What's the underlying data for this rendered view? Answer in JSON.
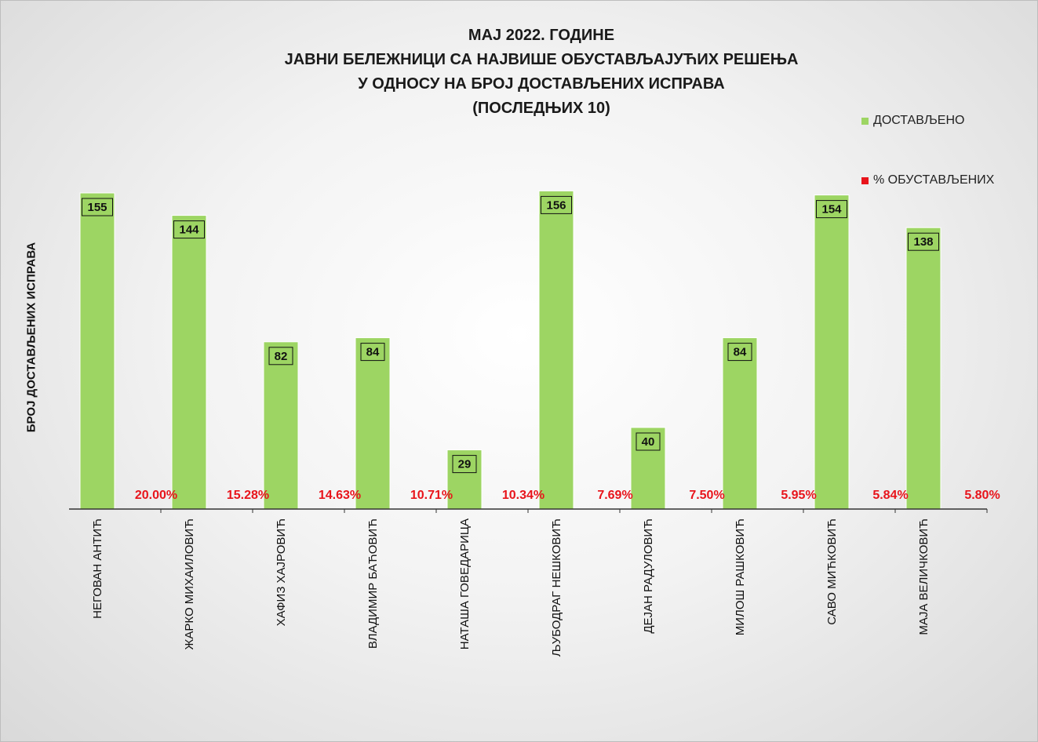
{
  "title_lines": [
    "МАЈ 2022. ГОДИНЕ",
    "ЈАВНИ БЕЛЕЖНИЦИ СА НАЈВИШЕ ОБУСТАВЉАЈУЋИХ РЕШЕЊА",
    "У ОДНОСУ НА БРОЈ ДОСТАВЉЕНИХ ИСПРАВА",
    "(ПОСЛЕДЊИХ 10)"
  ],
  "legend": [
    {
      "label": "ДОСТАВЉЕНО",
      "color": "#9dd563"
    },
    {
      "label": "% ОБУСТАВЉЕНИХ",
      "color": "#e8141b"
    }
  ],
  "chart_data": {
    "type": "bar",
    "title": "МАЈ 2022. ГОДИНЕ ЈАВНИ БЕЛЕЖНИЦИ СА НАЈВИШЕ ОБУСТАВЉАЈУЋИХ РЕШЕЊА У ОДНОСУ НА БРОЈ ДОСТАВЉЕНИХ ИСПРАВА (ПОСЛЕДЊИХ 10)",
    "xlabel": "",
    "ylabel": "БРОЈ ДОСТАВЉЕНИХ ИСПРАВА",
    "ylim": [
      0,
      160
    ],
    "grid": false,
    "legend_position": "top-right",
    "categories": [
      "НЕГОВАН АНТИЋ",
      "ЖАРКО МИХАИЛОВИЋ",
      "ХАФИЗ ХАЈРОВИЋ",
      "ВЛАДИМИР БАЋОВИЋ",
      "НАТАША ГОВЕДАРИЦА",
      "ЉУБОДРАГ НЕШКОВИЋ",
      "ДЕЈАН РАДУЛОВИЋ",
      "МИЛОШ РАШКОВИЋ",
      "САВО МИЋКОВИЋ",
      "МАЈА ВЕЛИЧКОВИЋ"
    ],
    "series": [
      {
        "name": "ДОСТАВЉЕНО",
        "color": "#9dd563",
        "values": [
          155,
          144,
          82,
          84,
          29,
          156,
          40,
          84,
          154,
          138
        ]
      },
      {
        "name": "% ОБУСТАВЉЕНИХ",
        "color": "#e8141b",
        "values": [
          20.0,
          15.28,
          14.63,
          10.71,
          10.34,
          7.69,
          7.5,
          5.95,
          5.84,
          5.8
        ],
        "labels": [
          "20.00%",
          "15.28%",
          "14.63%",
          "10.71%",
          "10.34%",
          "7.69%",
          "7.50%",
          "5.95%",
          "5.84%",
          "5.80%"
        ]
      }
    ]
  }
}
